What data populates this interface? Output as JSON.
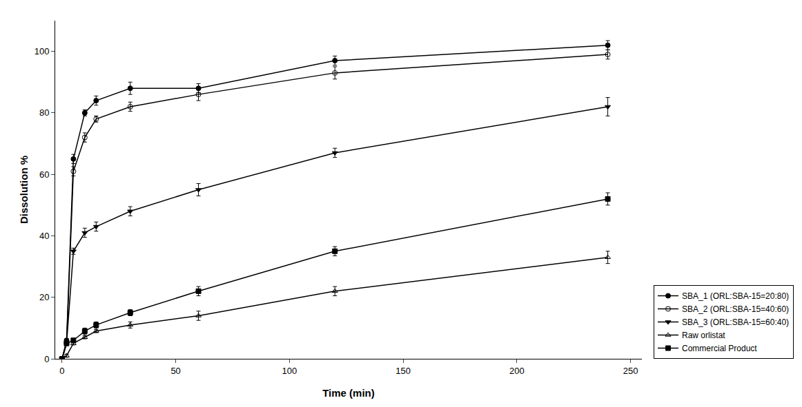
{
  "chart_data": {
    "type": "line",
    "xlabel": "Time (min)",
    "ylabel": "Dissolution %",
    "xlim": [
      -3,
      255
    ],
    "ylim": [
      0,
      110
    ],
    "xticks": [
      0,
      50,
      100,
      150,
      200,
      250
    ],
    "yticks": [
      0,
      20,
      40,
      60,
      80,
      100
    ],
    "grid": false,
    "legend": "lower right",
    "series": [
      {
        "name": "SBA_1 (ORL:SBA-15=20:80)",
        "color": "black",
        "marker": "circle",
        "line_style": "solid",
        "x": [
          0,
          2,
          5,
          10,
          15,
          30,
          60,
          120,
          240
        ],
        "values": [
          0,
          6,
          65,
          80,
          84,
          88,
          88,
          97,
          102
        ],
        "errors": [
          0,
          0.5,
          1.5,
          1.0,
          1.5,
          2.0,
          1.5,
          1.5,
          1.5
        ]
      },
      {
        "name": "SBA_2 (ORL:SBA-15=40:60)",
        "color": "black",
        "marker": "circle-open",
        "line_style": "solid",
        "x": [
          0,
          2,
          5,
          10,
          15,
          30,
          60,
          120,
          240
        ],
        "values": [
          0,
          5,
          61,
          72,
          78,
          82,
          86,
          93,
          99
        ],
        "errors": [
          0,
          0.5,
          1.5,
          1.5,
          1.0,
          1.5,
          2.0,
          2.0,
          1.5
        ]
      },
      {
        "name": "SBA_3 (ORL:SBA-15=60:40)",
        "color": "black",
        "marker": "triangle-down",
        "line_style": "solid",
        "x": [
          0,
          2,
          5,
          10,
          15,
          30,
          60,
          120,
          240
        ],
        "values": [
          0,
          5,
          35,
          41,
          43,
          48,
          55,
          67,
          82
        ],
        "errors": [
          0,
          0.5,
          1.0,
          1.5,
          1.5,
          1.5,
          2.0,
          1.5,
          3.0
        ]
      },
      {
        "name": "Raw orlistat",
        "color": "black",
        "marker": "triangle-up-open",
        "line_style": "solid",
        "x": [
          0,
          2,
          5,
          10,
          15,
          30,
          60,
          120,
          240
        ],
        "values": [
          0,
          1,
          5,
          7,
          9,
          11,
          14,
          22,
          33
        ],
        "errors": [
          0,
          0.5,
          0.5,
          0.5,
          0.5,
          1.0,
          1.5,
          1.5,
          2.0
        ]
      },
      {
        "name": "Commercial Product",
        "color": "black",
        "marker": "square",
        "line_style": "solid",
        "x": [
          0,
          2,
          5,
          10,
          15,
          30,
          60,
          120,
          240
        ],
        "values": [
          0,
          5,
          6,
          9,
          11,
          15,
          22,
          35,
          52
        ],
        "errors": [
          0,
          0.5,
          0.5,
          1.0,
          1.0,
          1.0,
          1.5,
          1.5,
          2.0
        ]
      }
    ]
  }
}
